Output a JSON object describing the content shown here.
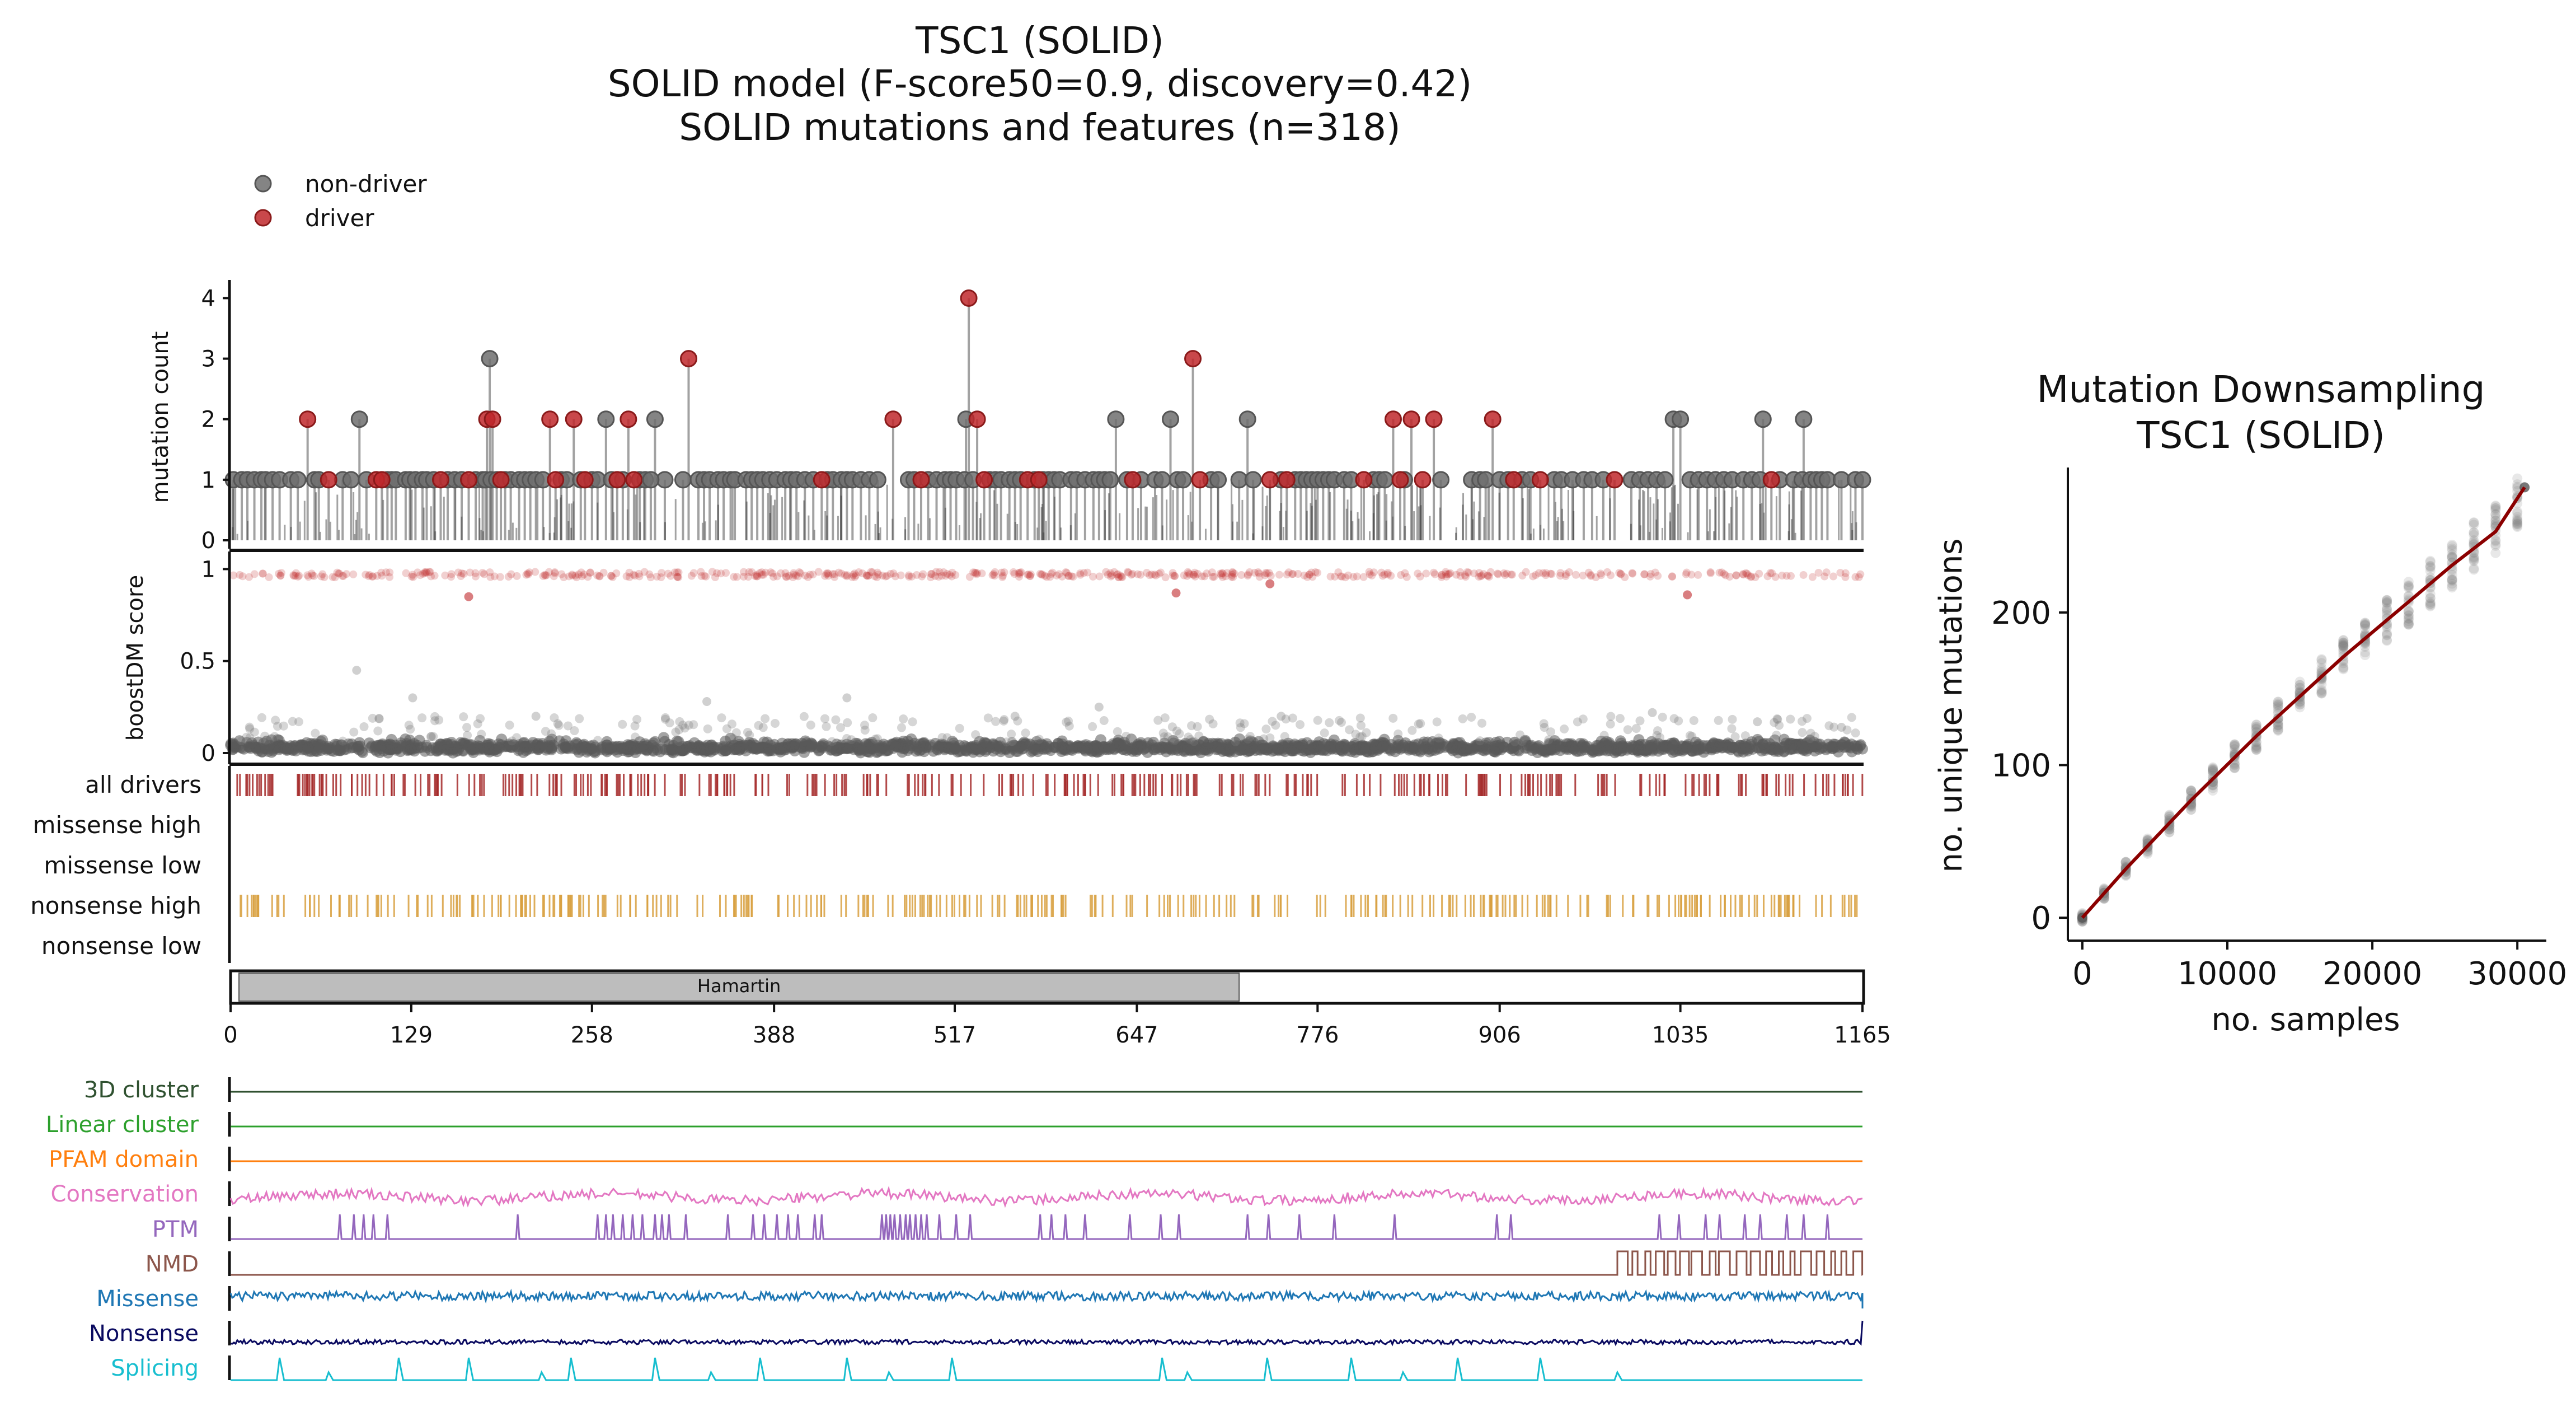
{
  "chart_data": [
    {
      "id": "needle",
      "type": "scatter",
      "title_lines": [
        "TSC1 (SOLID)",
        "SOLID model (F-score50=0.9, discovery=0.42)",
        "SOLID mutations and features (n=318)"
      ],
      "legend": [
        {
          "name": "non-driver",
          "color": "#6e6e6e"
        },
        {
          "name": "driver",
          "color": "#c0282b"
        }
      ],
      "legend_position": "top-left",
      "ylabel": "mutation count",
      "yticks": [
        0,
        1,
        2,
        3,
        4
      ],
      "ylim": [
        0,
        4.3
      ],
      "xlim": [
        0,
        1165
      ],
      "points": [
        {
          "x": 55,
          "y": 2,
          "driver": true
        },
        {
          "x": 70,
          "y": 1,
          "driver": true
        },
        {
          "x": 92,
          "y": 2,
          "driver": false
        },
        {
          "x": 104,
          "y": 1,
          "driver": true
        },
        {
          "x": 108,
          "y": 1,
          "driver": true
        },
        {
          "x": 150,
          "y": 1,
          "driver": true
        },
        {
          "x": 170,
          "y": 1,
          "driver": true
        },
        {
          "x": 185,
          "y": 3,
          "driver": false
        },
        {
          "x": 183,
          "y": 2,
          "driver": true
        },
        {
          "x": 187,
          "y": 2,
          "driver": true
        },
        {
          "x": 193,
          "y": 1,
          "driver": true
        },
        {
          "x": 228,
          "y": 2,
          "driver": true
        },
        {
          "x": 232,
          "y": 1,
          "driver": true
        },
        {
          "x": 245,
          "y": 2,
          "driver": true
        },
        {
          "x": 253,
          "y": 1,
          "driver": true
        },
        {
          "x": 268,
          "y": 2,
          "driver": false
        },
        {
          "x": 276,
          "y": 1,
          "driver": true
        },
        {
          "x": 284,
          "y": 2,
          "driver": true
        },
        {
          "x": 288,
          "y": 1,
          "driver": true
        },
        {
          "x": 300,
          "y": 1,
          "driver": false
        },
        {
          "x": 303,
          "y": 2,
          "driver": false
        },
        {
          "x": 327,
          "y": 3,
          "driver": true
        },
        {
          "x": 422,
          "y": 1,
          "driver": true
        },
        {
          "x": 473,
          "y": 2,
          "driver": true
        },
        {
          "x": 493,
          "y": 1,
          "driver": true
        },
        {
          "x": 527,
          "y": 4,
          "driver": true
        },
        {
          "x": 525,
          "y": 2,
          "driver": false
        },
        {
          "x": 533,
          "y": 2,
          "driver": true
        },
        {
          "x": 538,
          "y": 1,
          "driver": true
        },
        {
          "x": 569,
          "y": 1,
          "driver": true
        },
        {
          "x": 577,
          "y": 1,
          "driver": true
        },
        {
          "x": 632,
          "y": 2,
          "driver": false
        },
        {
          "x": 644,
          "y": 1,
          "driver": true
        },
        {
          "x": 671,
          "y": 2,
          "driver": false
        },
        {
          "x": 687,
          "y": 3,
          "driver": true
        },
        {
          "x": 692,
          "y": 1,
          "driver": true
        },
        {
          "x": 726,
          "y": 2,
          "driver": false
        },
        {
          "x": 742,
          "y": 1,
          "driver": true
        },
        {
          "x": 754,
          "y": 1,
          "driver": true
        },
        {
          "x": 809,
          "y": 1,
          "driver": true
        },
        {
          "x": 830,
          "y": 2,
          "driver": true
        },
        {
          "x": 835,
          "y": 1,
          "driver": true
        },
        {
          "x": 843,
          "y": 2,
          "driver": true
        },
        {
          "x": 851,
          "y": 1,
          "driver": true
        },
        {
          "x": 859,
          "y": 2,
          "driver": true
        },
        {
          "x": 901,
          "y": 2,
          "driver": true
        },
        {
          "x": 916,
          "y": 1,
          "driver": true
        },
        {
          "x": 935,
          "y": 1,
          "driver": true
        },
        {
          "x": 988,
          "y": 1,
          "driver": true
        },
        {
          "x": 1030,
          "y": 2,
          "driver": false
        },
        {
          "x": 1035,
          "y": 2,
          "driver": false
        },
        {
          "x": 1094,
          "y": 2,
          "driver": false
        },
        {
          "x": 1100,
          "y": 1,
          "driver": true
        },
        {
          "x": 1123,
          "y": 2,
          "driver": false
        }
      ],
      "baseline_count_y": 1,
      "baseline_positions": [
        2,
        8,
        12,
        17,
        22,
        25,
        30,
        35,
        43,
        48,
        60,
        63,
        80,
        86,
        97,
        112,
        115,
        118,
        125,
        128,
        132,
        137,
        140,
        145,
        155,
        160,
        165,
        175,
        180,
        182,
        186,
        190,
        196,
        200,
        206,
        210,
        214,
        218,
        223,
        236,
        240,
        250,
        258,
        262,
        272,
        280,
        292,
        296,
        310,
        323,
        334,
        338,
        342,
        348,
        352,
        357,
        360,
        368,
        372,
        376,
        380,
        385,
        390,
        396,
        400,
        404,
        410,
        416,
        426,
        430,
        436,
        440,
        444,
        450,
        456,
        462,
        484,
        488,
        498,
        504,
        510,
        514,
        518,
        524,
        530,
        542,
        546,
        550,
        556,
        560,
        564,
        574,
        580,
        584,
        588,
        592,
        600,
        604,
        610,
        616,
        620,
        624,
        628,
        640,
        650,
        660,
        665,
        676,
        680,
        700,
        705,
        720,
        730,
        750,
        760,
        764,
        768,
        772,
        776,
        780,
        784,
        788,
        795,
        800,
        816,
        820,
        824,
        838,
        864,
        886,
        892,
        896,
        906,
        912,
        922,
        928,
        945,
        950,
        958,
        966,
        972,
        980,
        1000,
        1006,
        1012,
        1018,
        1024,
        1042,
        1048,
        1054,
        1060,
        1066,
        1072,
        1080,
        1086,
        1092,
        1106,
        1116,
        1122,
        1128,
        1132,
        1136,
        1140,
        1150,
        1160,
        1165
      ]
    },
    {
      "id": "boostdm",
      "type": "scatter",
      "ylabel": "boostDM score",
      "yticks": [
        0,
        0.5,
        1
      ],
      "ytick_labels": [
        "0",
        "0.5",
        "1"
      ],
      "ylim": [
        0,
        1.05
      ],
      "xlim": [
        0,
        1165
      ],
      "driver_y": 0.97,
      "nondriver_y": 0.02,
      "outliers": [
        {
          "x": 170,
          "y": 0.85,
          "driver": true
        },
        {
          "x": 675,
          "y": 0.87,
          "driver": true
        },
        {
          "x": 742,
          "y": 0.92,
          "driver": true
        },
        {
          "x": 1040,
          "y": 0.86,
          "driver": true
        },
        {
          "x": 90,
          "y": 0.45,
          "driver": false
        },
        {
          "x": 440,
          "y": 0.3,
          "driver": false
        },
        {
          "x": 130,
          "y": 0.3,
          "driver": false
        },
        {
          "x": 620,
          "y": 0.25,
          "driver": false
        },
        {
          "x": 560,
          "y": 0.2,
          "driver": false
        },
        {
          "x": 1015,
          "y": 0.22,
          "driver": false
        },
        {
          "x": 750,
          "y": 0.2,
          "driver": false
        },
        {
          "x": 340,
          "y": 0.28,
          "driver": false
        },
        {
          "x": 218,
          "y": 0.2,
          "driver": false
        },
        {
          "x": 1090,
          "y": 0.17,
          "driver": false
        },
        {
          "x": 1150,
          "y": 0.14,
          "driver": false
        }
      ]
    },
    {
      "id": "tracks",
      "type": "scatter",
      "rows": [
        {
          "name": "all drivers",
          "color": "#a52a2a"
        },
        {
          "name": "missense high",
          "color": "#2c7fb8"
        },
        {
          "name": "missense low",
          "color": "#2c7fb8"
        },
        {
          "name": "nonsense high",
          "color": "#d8a040"
        },
        {
          "name": "nonsense low",
          "color": "#d8a040"
        }
      ],
      "xlim": [
        0,
        1165
      ]
    },
    {
      "id": "domain",
      "type": "bar",
      "domains": [
        {
          "name": "Hamartin",
          "start": 6,
          "end": 720,
          "color": "#bdbdbd"
        }
      ],
      "xticks": [
        0,
        129,
        258,
        388,
        517,
        647,
        776,
        906,
        1035,
        1165
      ],
      "xlim": [
        0,
        1165
      ]
    },
    {
      "id": "features",
      "type": "line",
      "xlim": [
        0,
        1165
      ],
      "series": [
        {
          "name": "3D cluster",
          "color": "#2f5130"
        },
        {
          "name": "Linear cluster",
          "color": "#2ca02c"
        },
        {
          "name": "PFAM domain",
          "color": "#ff7f0e"
        },
        {
          "name": "Conservation",
          "color": "#e377c2"
        },
        {
          "name": "PTM",
          "color": "#9467bd"
        },
        {
          "name": "NMD",
          "color": "#8c564b"
        },
        {
          "name": "Missense",
          "color": "#1f77b4"
        },
        {
          "name": "Nonsense",
          "color": "#0a0a60"
        },
        {
          "name": "Splicing",
          "color": "#17becf"
        }
      ],
      "ptm_spikes": [
        78,
        88,
        95,
        102,
        112,
        205,
        262,
        268,
        273,
        280,
        287,
        294,
        303,
        308,
        313,
        325,
        355,
        373,
        381,
        390,
        398,
        405,
        417,
        422,
        465,
        468,
        471,
        474,
        478,
        482,
        485,
        489,
        493,
        497,
        506,
        518,
        528,
        578,
        586,
        596,
        610,
        642,
        664,
        677,
        726,
        741,
        763,
        788,
        831,
        904,
        914,
        1020,
        1034,
        1053,
        1063,
        1081,
        1092,
        1111,
        1123,
        1140
      ],
      "nmd_start": 990,
      "splicing_spikes": [
        35,
        70,
        120,
        170,
        222,
        243,
        303,
        343,
        378,
        440,
        470,
        515,
        665,
        683,
        740,
        800,
        837,
        876,
        935,
        990
      ]
    },
    {
      "id": "downsampling",
      "type": "scatter",
      "title_lines": [
        "Mutation Downsampling",
        "TSC1 (SOLID)"
      ],
      "xlabel": "no. samples",
      "ylabel": "no. unique mutations",
      "xticks": [
        0,
        10000,
        20000,
        30000
      ],
      "yticks": [
        0,
        100,
        200
      ],
      "xlim": [
        -1000,
        32000
      ],
      "ylim": [
        -15,
        295
      ],
      "mean_line": [
        [
          0,
          0
        ],
        [
          1500,
          16
        ],
        [
          3000,
          32
        ],
        [
          4500,
          47
        ],
        [
          6000,
          62
        ],
        [
          7500,
          77
        ],
        [
          9000,
          91
        ],
        [
          10500,
          105
        ],
        [
          12000,
          119
        ],
        [
          13500,
          132
        ],
        [
          15000,
          145
        ],
        [
          16500,
          158
        ],
        [
          18000,
          171
        ],
        [
          19500,
          183
        ],
        [
          21000,
          195
        ],
        [
          22500,
          207
        ],
        [
          24000,
          219
        ],
        [
          25500,
          231
        ],
        [
          27000,
          242
        ],
        [
          28500,
          253
        ],
        [
          30500,
          282
        ]
      ],
      "line_color": "#8b0000",
      "point_color": "#808080"
    }
  ]
}
